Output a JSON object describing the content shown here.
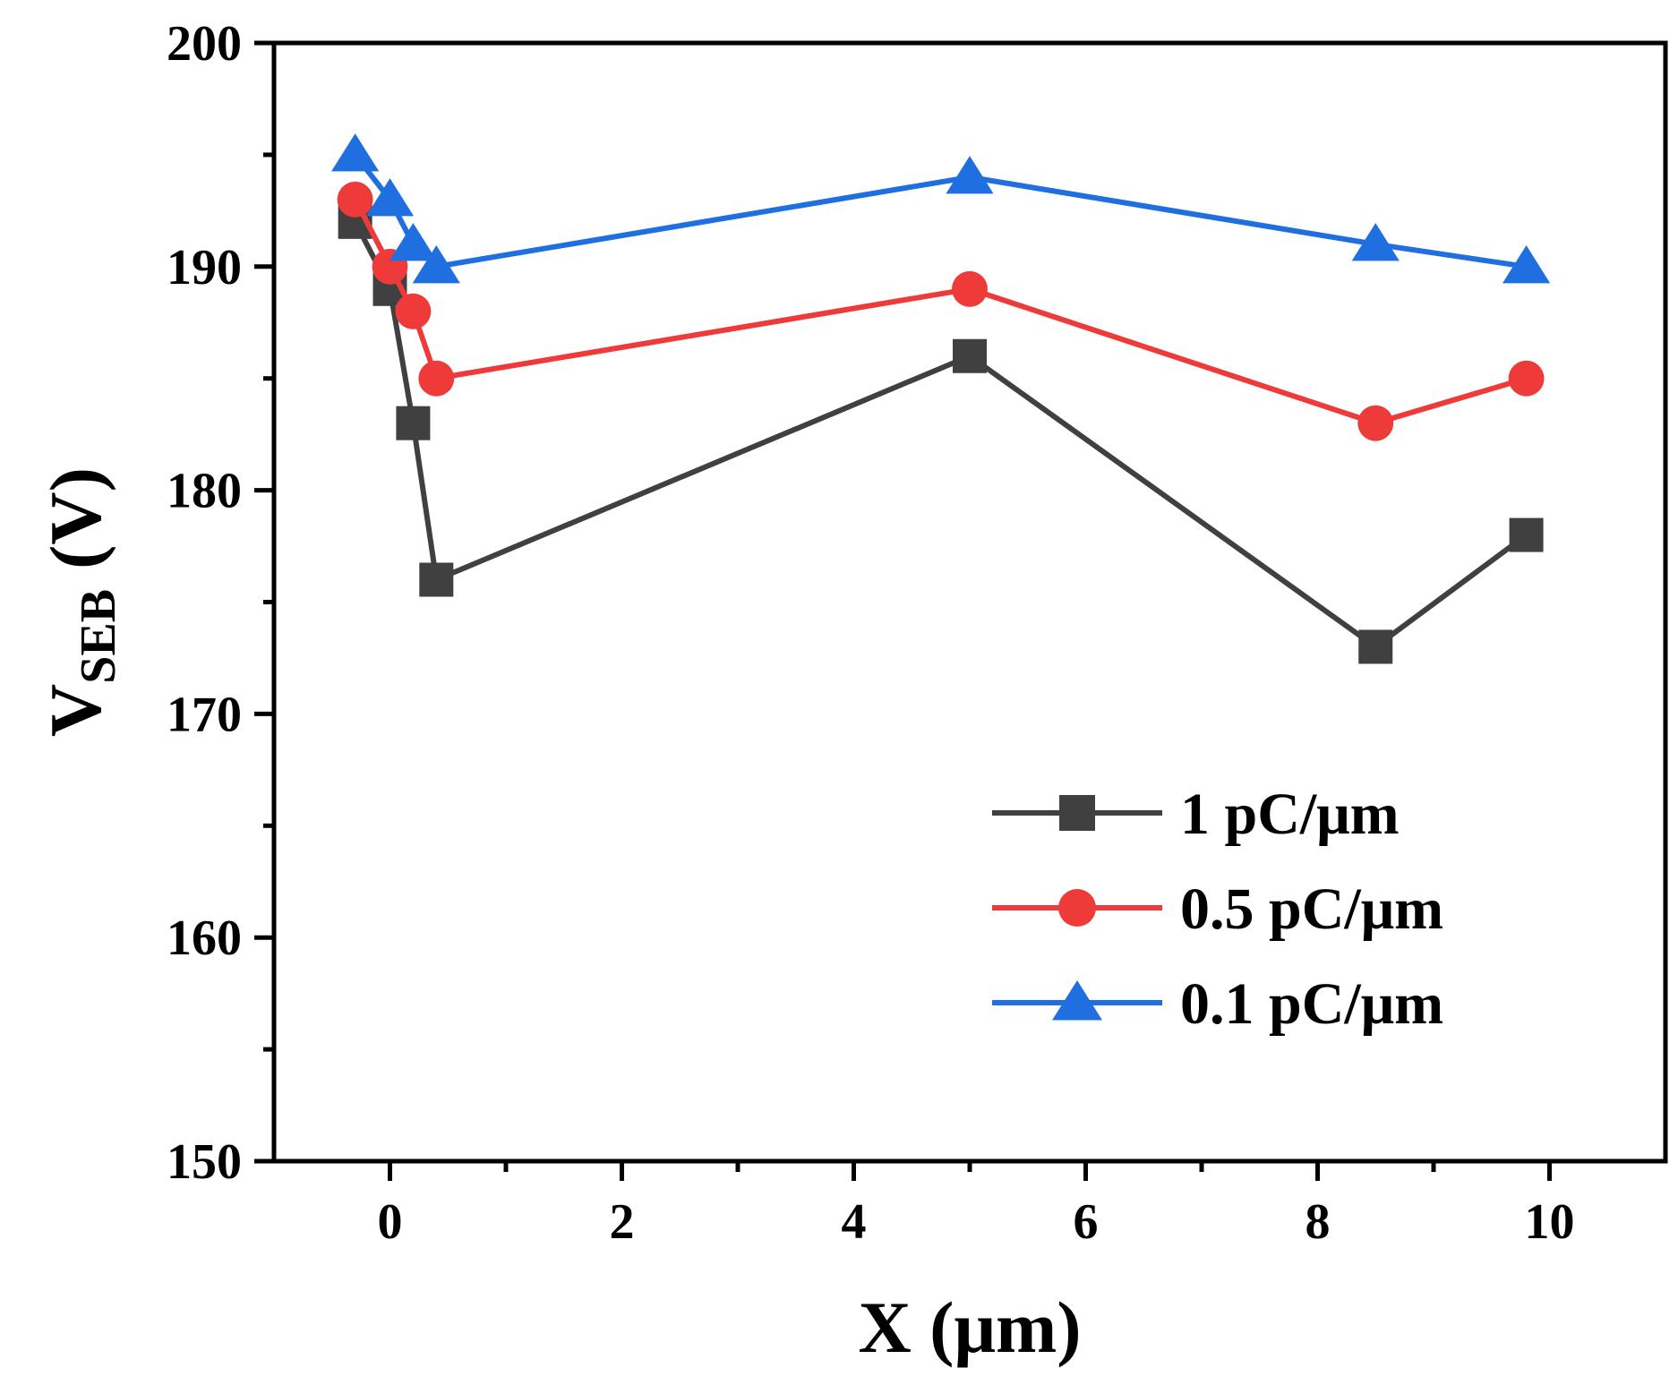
{
  "chart_data": {
    "type": "line",
    "title": "",
    "xlabel": "X (μm)",
    "ylabel_main": "V",
    "ylabel_sub": "SEB",
    "ylabel_unit": "(V)",
    "xlim": [
      -1,
      11
    ],
    "ylim": [
      150,
      200
    ],
    "xticks": [
      0,
      2,
      4,
      6,
      8,
      10
    ],
    "xtick_labels": [
      "0",
      "2",
      "4",
      "6",
      "8",
      "10"
    ],
    "yticks": [
      150,
      160,
      170,
      180,
      190,
      200
    ],
    "ytick_labels": [
      "150",
      "160",
      "170",
      "180",
      "190",
      "200"
    ],
    "grid": false,
    "legend_position": "center-right",
    "series": [
      {
        "name": "1 pC/μm",
        "color": "#404040",
        "marker": "square",
        "x": [
          -0.3,
          0.0,
          0.2,
          0.4,
          5.0,
          8.5,
          9.8
        ],
        "y": [
          192,
          189,
          183,
          176,
          186,
          173,
          178
        ]
      },
      {
        "name": "0.5 pC/μm",
        "color": "#ef3a3a",
        "marker": "circle",
        "x": [
          -0.3,
          0.0,
          0.2,
          0.4,
          5.0,
          8.5,
          9.8
        ],
        "y": [
          193,
          190,
          188,
          185,
          189,
          183,
          185
        ]
      },
      {
        "name": "0.1 pC/μm",
        "color": "#1f6fe0",
        "marker": "triangle",
        "x": [
          -0.3,
          0.0,
          0.2,
          0.4,
          5.0,
          8.5,
          9.8
        ],
        "y": [
          195,
          193,
          191,
          190,
          194,
          191,
          190
        ]
      }
    ]
  }
}
